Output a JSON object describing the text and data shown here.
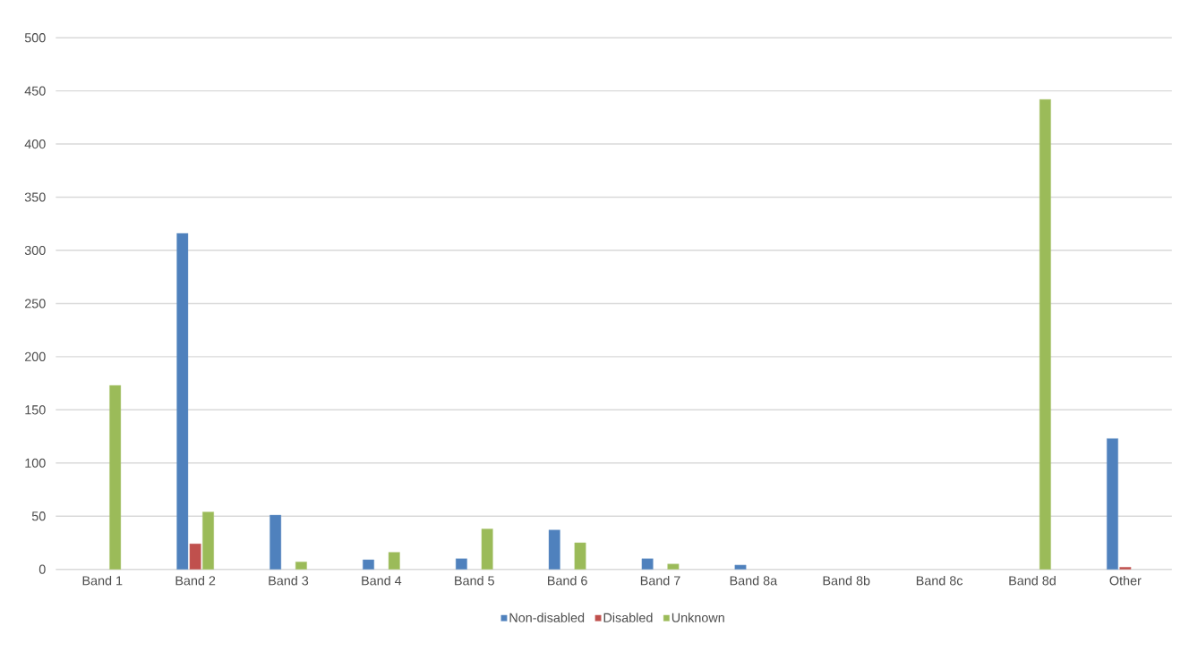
{
  "chart_data": {
    "type": "bar",
    "categories": [
      "Band 1",
      "Band 2",
      "Band 3",
      "Band 4",
      "Band 5",
      "Band 6",
      "Band 7",
      "Band 8a",
      "Band 8b",
      "Band 8c",
      "Band 8d",
      "Other"
    ],
    "series": [
      {
        "name": "Non-disabled",
        "color": "#4f81bd",
        "values": [
          null,
          316,
          51,
          9,
          10,
          37,
          10,
          4,
          null,
          null,
          null,
          123
        ]
      },
      {
        "name": "Disabled",
        "color": "#c0504d",
        "values": [
          null,
          24,
          null,
          null,
          null,
          null,
          null,
          null,
          null,
          null,
          null,
          2
        ]
      },
      {
        "name": "Unknown",
        "color": "#9bbb59",
        "values": [
          173,
          54,
          7,
          16,
          38,
          25,
          5,
          null,
          null,
          null,
          442,
          null
        ]
      }
    ],
    "ylim": [
      0,
      500
    ],
    "yticks": [
      0,
      50,
      100,
      150,
      200,
      250,
      300,
      350,
      400,
      450,
      500
    ],
    "grid": "y",
    "legend": "bottom"
  }
}
